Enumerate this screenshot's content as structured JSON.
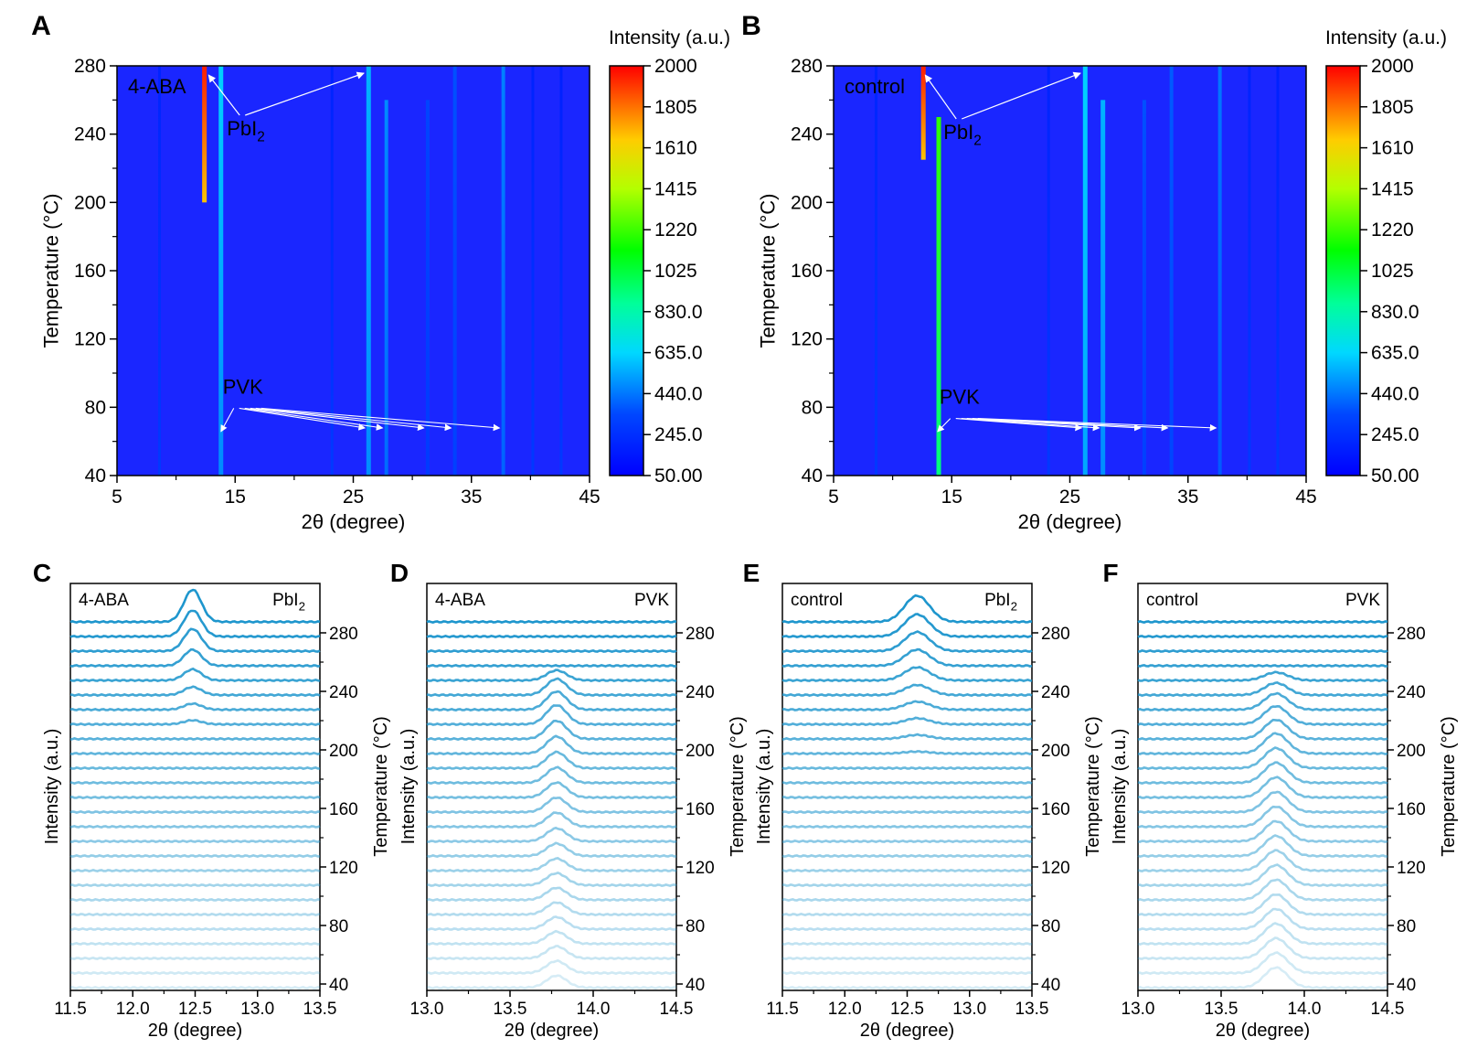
{
  "chart_data": [
    {
      "panel": "A",
      "type": "heatmap",
      "sample": "4-ABA",
      "xlabel": "2θ (degree)",
      "ylabel": "Temperature (°C)",
      "xlim": [
        5,
        45
      ],
      "ylim": [
        40,
        280
      ],
      "xticks": [
        "5",
        "15",
        "25",
        "35",
        "45"
      ],
      "yticks": [
        "40",
        "80",
        "120",
        "160",
        "200",
        "240",
        "280"
      ],
      "colorbar": {
        "title": "Intensity (a.u.)",
        "ticks": [
          "2000",
          "1805",
          "1610",
          "1415",
          "1220",
          "1025",
          "830.0",
          "635.0",
          "440.0",
          "245.0",
          "50.00"
        ],
        "range": [
          50,
          2000
        ]
      },
      "lines": [
        {
          "x": 12.4,
          "peak": 1950,
          "t_start": 200,
          "t_end": 280,
          "label": "PbI2"
        },
        {
          "x": 13.8,
          "peak": 620,
          "t_start": 40,
          "t_end": 280
        },
        {
          "x": 26.3,
          "peak": 560,
          "t_start": 40,
          "t_end": 280
        },
        {
          "x": 27.8,
          "peak": 480,
          "t_start": 40,
          "t_end": 260
        },
        {
          "x": 31.3,
          "peak": 330,
          "t_start": 40,
          "t_end": 260
        },
        {
          "x": 33.6,
          "peak": 360,
          "t_start": 40,
          "t_end": 280
        },
        {
          "x": 37.7,
          "peak": 460,
          "t_start": 40,
          "t_end": 280
        },
        {
          "x": 8.6,
          "peak": 200,
          "t_start": 40,
          "t_end": 280
        },
        {
          "x": 23.2,
          "peak": 190,
          "t_start": 40,
          "t_end": 280
        },
        {
          "x": 40.2,
          "peak": 190,
          "t_start": 40,
          "t_end": 280
        },
        {
          "x": 42.6,
          "peak": 180,
          "t_start": 40,
          "t_end": 280
        }
      ],
      "annotations": [
        {
          "text": "PbI",
          "sub": "2",
          "phase": "PbI2",
          "peaks": [
            12.6,
            25.9
          ]
        },
        {
          "text": "PVK",
          "phase": "PVK",
          "peaks": [
            13.8,
            26.3,
            27.8,
            31.3,
            33.6,
            37.7
          ]
        }
      ]
    },
    {
      "panel": "B",
      "type": "heatmap",
      "sample": "control",
      "xlabel": "2θ (degree)",
      "ylabel": "Temperature (°C)",
      "xlim": [
        5,
        45
      ],
      "ylim": [
        40,
        280
      ],
      "xticks": [
        "5",
        "15",
        "25",
        "35",
        "45"
      ],
      "yticks": [
        "40",
        "80",
        "120",
        "160",
        "200",
        "240",
        "280"
      ],
      "colorbar": {
        "title": "Intensity (a.u.)",
        "ticks": [
          "2000",
          "1805",
          "1610",
          "1415",
          "1220",
          "1025",
          "830.0",
          "635.0",
          "440.0",
          "245.0",
          "50.00"
        ],
        "range": [
          50,
          2000
        ]
      },
      "lines": [
        {
          "x": 12.6,
          "peak": 1950,
          "t_start": 225,
          "t_end": 280,
          "label": "PbI2"
        },
        {
          "x": 13.9,
          "peak": 1200,
          "t_start": 40,
          "t_end": 250
        },
        {
          "x": 26.3,
          "peak": 620,
          "t_start": 40,
          "t_end": 280
        },
        {
          "x": 27.8,
          "peak": 560,
          "t_start": 40,
          "t_end": 260
        },
        {
          "x": 31.3,
          "peak": 360,
          "t_start": 40,
          "t_end": 260
        },
        {
          "x": 33.6,
          "peak": 380,
          "t_start": 40,
          "t_end": 280
        },
        {
          "x": 37.7,
          "peak": 440,
          "t_start": 40,
          "t_end": 280
        },
        {
          "x": 8.6,
          "peak": 200,
          "t_start": 40,
          "t_end": 280
        },
        {
          "x": 23.2,
          "peak": 190,
          "t_start": 40,
          "t_end": 280
        },
        {
          "x": 40.2,
          "peak": 190,
          "t_start": 40,
          "t_end": 280
        },
        {
          "x": 42.6,
          "peak": 180,
          "t_start": 40,
          "t_end": 280
        }
      ],
      "annotations": [
        {
          "text": "PbI",
          "sub": "2",
          "phase": "PbI2",
          "peaks": [
            12.6,
            25.9
          ]
        },
        {
          "text": "PVK",
          "phase": "PVK",
          "peaks": [
            13.8,
            26.3,
            27.8,
            31.3,
            33.6,
            37.7
          ]
        }
      ]
    },
    {
      "panel": "C",
      "type": "line",
      "sample": "4-ABA",
      "phase": "PbI",
      "phase_sub": "2",
      "xlabel": "2θ (degree)",
      "ylabel_left": "Intensity (a.u.)",
      "ylabel_right": "Temperature (°C)",
      "xlim": [
        11.5,
        13.5
      ],
      "xticks": [
        "11.5",
        "12.0",
        "12.5",
        "13.0",
        "13.5"
      ],
      "temperature_ticks": [
        "40",
        "80",
        "120",
        "160",
        "200",
        "240",
        "280"
      ],
      "temperatures": [
        40,
        50,
        60,
        70,
        80,
        90,
        100,
        110,
        120,
        130,
        140,
        150,
        160,
        170,
        180,
        190,
        200,
        210,
        220,
        230,
        240,
        250,
        260,
        270,
        280,
        290
      ],
      "peak_center": 12.48,
      "peak_width": 0.07,
      "peak_heights": [
        0,
        0,
        0,
        0,
        0,
        0,
        0,
        0,
        0,
        0,
        0,
        0,
        0,
        0,
        0,
        0,
        0,
        0,
        0.2,
        0.3,
        0.4,
        0.55,
        0.8,
        1.1,
        1.3,
        1.6
      ]
    },
    {
      "panel": "D",
      "type": "line",
      "sample": "4-ABA",
      "phase": "PVK",
      "phase_sub": "",
      "xlabel": "2θ (degree)",
      "ylabel_left": "Intensity (a.u.)",
      "ylabel_right": "Temperature (°C)",
      "xlim": [
        13.0,
        14.5
      ],
      "xticks": [
        "13.0",
        "13.5",
        "14.0",
        "14.5"
      ],
      "temperature_ticks": [
        "40",
        "80",
        "120",
        "160",
        "200",
        "240",
        "280"
      ],
      "temperatures": [
        40,
        50,
        60,
        70,
        80,
        90,
        100,
        110,
        120,
        130,
        140,
        150,
        160,
        170,
        180,
        190,
        200,
        210,
        220,
        230,
        240,
        250,
        260,
        270,
        280,
        290
      ],
      "peak_center": 13.78,
      "peak_width": 0.06,
      "peak_heights": [
        0.6,
        0.6,
        0.6,
        0.6,
        0.6,
        0.6,
        0.6,
        0.6,
        0.6,
        0.62,
        0.65,
        0.7,
        0.72,
        0.74,
        0.76,
        0.8,
        0.85,
        0.9,
        0.95,
        0.9,
        0.8,
        0.5,
        0,
        0,
        0,
        0
      ]
    },
    {
      "panel": "E",
      "type": "line",
      "sample": "control",
      "phase": "PbI",
      "phase_sub": "2",
      "xlabel": "2θ (degree)",
      "ylabel_left": "Intensity (a.u.)",
      "ylabel_right": "Temperature (°C)",
      "xlim": [
        11.5,
        13.5
      ],
      "xticks": [
        "11.5",
        "12.0",
        "12.5",
        "13.0",
        "13.5"
      ],
      "temperature_ticks": [
        "40",
        "80",
        "120",
        "160",
        "200",
        "240",
        "280"
      ],
      "temperatures": [
        40,
        50,
        60,
        70,
        80,
        90,
        100,
        110,
        120,
        130,
        140,
        150,
        160,
        170,
        180,
        190,
        200,
        210,
        220,
        230,
        240,
        250,
        260,
        270,
        280,
        290
      ],
      "peak_center": 12.58,
      "peak_width": 0.1,
      "peak_heights": [
        0,
        0,
        0,
        0,
        0,
        0,
        0,
        0,
        0,
        0,
        0,
        0,
        0,
        0,
        0,
        0,
        0.1,
        0.2,
        0.3,
        0.4,
        0.5,
        0.65,
        0.8,
        0.95,
        1.1,
        1.3
      ]
    },
    {
      "panel": "F",
      "type": "line",
      "sample": "control",
      "phase": "PVK",
      "phase_sub": "",
      "xlabel": "2θ (degree)",
      "ylabel_left": "Intensity (a.u.)",
      "ylabel_right": "Temperature (°C)",
      "xlim": [
        13.0,
        14.5
      ],
      "xticks": [
        "13.0",
        "13.5",
        "14.0",
        "14.5"
      ],
      "temperature_ticks": [
        "40",
        "80",
        "120",
        "160",
        "200",
        "240",
        "280"
      ],
      "temperatures": [
        40,
        50,
        60,
        70,
        80,
        90,
        100,
        110,
        120,
        130,
        140,
        150,
        160,
        170,
        180,
        190,
        200,
        210,
        220,
        230,
        240,
        250,
        260,
        270,
        280,
        290
      ],
      "peak_center": 13.83,
      "peak_width": 0.07,
      "peak_heights": [
        1.0,
        1.0,
        1.0,
        1.0,
        1.0,
        1.0,
        1.0,
        1.0,
        1.0,
        1.0,
        1.0,
        1.0,
        1.0,
        1.0,
        1.0,
        1.0,
        1.0,
        0.95,
        0.9,
        0.8,
        0.6,
        0.4,
        0,
        0,
        0,
        0
      ]
    }
  ]
}
